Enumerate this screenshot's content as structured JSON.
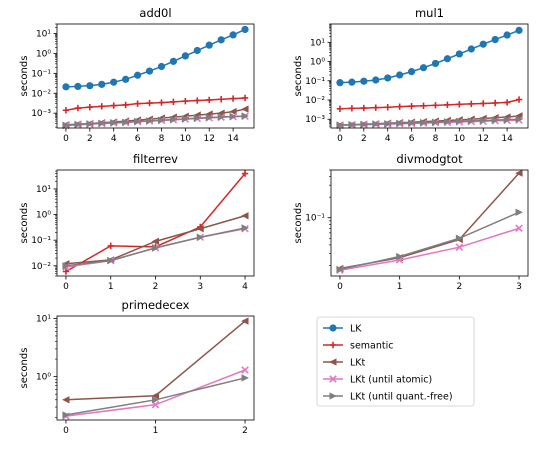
{
  "series_styles": [
    {
      "key": "LK",
      "color": "#1f77b4",
      "marker": "circle"
    },
    {
      "key": "semantic",
      "color": "#d62728",
      "marker": "plus"
    },
    {
      "key": "LKt",
      "color": "#8c564b",
      "marker": "triangle-left"
    },
    {
      "key": "LKt_atomic",
      "color": "#e377c2",
      "marker": "x"
    },
    {
      "key": "LKt_qf",
      "color": "#7f7f7f",
      "marker": "triangle-right"
    }
  ],
  "legend": {
    "placement": "lower-right empty cell",
    "entries": [
      "LK",
      "semantic",
      "LKt",
      "LKt (until atomic)",
      "LKt (until quant.-free)"
    ]
  },
  "chart_data": [
    {
      "type": "line",
      "title": "add0l",
      "ylabel": "seconds",
      "yscale": "log",
      "ylim": [
        0.00018,
        30
      ],
      "xlim": [
        -0.75,
        15.75
      ],
      "xticks": [
        0,
        2,
        4,
        6,
        8,
        10,
        12,
        14
      ],
      "yticks": [
        {
          "v": 0.001,
          "label": "10⁻³"
        },
        {
          "v": 0.01,
          "label": "10⁻²"
        },
        {
          "v": 0.1,
          "label": "10⁻¹"
        },
        {
          "v": 1,
          "label": "10⁰"
        },
        {
          "v": 10,
          "label": "10¹"
        }
      ],
      "x": [
        0,
        1,
        2,
        3,
        4,
        5,
        6,
        7,
        8,
        9,
        10,
        11,
        12,
        13,
        14,
        15
      ],
      "series": [
        {
          "name": "LK",
          "values": [
            0.021,
            0.022,
            0.024,
            0.028,
            0.036,
            0.05,
            0.08,
            0.13,
            0.22,
            0.4,
            0.75,
            1.4,
            2.6,
            4.8,
            8.5,
            16
          ]
        },
        {
          "name": "semantic",
          "values": [
            0.0014,
            0.0018,
            0.002,
            0.0022,
            0.0024,
            0.0026,
            0.003,
            0.0032,
            0.0034,
            0.0037,
            0.004,
            0.0043,
            0.0046,
            0.005,
            0.0054,
            0.0058
          ]
        },
        {
          "name": "LKt",
          "values": [
            0.00026,
            0.00028,
            0.0003,
            0.00033,
            0.00036,
            0.0004,
            0.00045,
            0.0005,
            0.00056,
            0.00063,
            0.0007,
            0.0008,
            0.0009,
            0.001,
            0.0012,
            0.0016
          ]
        },
        {
          "name": "LKt (until atomic)",
          "values": [
            0.00024,
            0.00026,
            0.00028,
            0.0003,
            0.00032,
            0.00034,
            0.00037,
            0.0004,
            0.00043,
            0.00046,
            0.0005,
            0.00054,
            0.00058,
            0.00062,
            0.00066,
            0.0007
          ]
        },
        {
          "name": "LKt (until quant.-free)",
          "values": [
            0.00025,
            0.00027,
            0.00029,
            0.00031,
            0.00033,
            0.00035,
            0.00038,
            0.00041,
            0.00044,
            0.00048,
            0.00052,
            0.00056,
            0.0006,
            0.00064,
            0.00068,
            0.00072
          ]
        }
      ]
    },
    {
      "type": "line",
      "title": "mul1",
      "ylabel": "seconds",
      "yscale": "log",
      "ylim": [
        0.00035,
        90
      ],
      "xlim": [
        -0.75,
        15.75
      ],
      "xticks": [
        0,
        2,
        4,
        6,
        8,
        10,
        12,
        14
      ],
      "yticks": [
        {
          "v": 0.001,
          "label": "10⁻³"
        },
        {
          "v": 0.01,
          "label": "10⁻²"
        },
        {
          "v": 0.1,
          "label": "10⁻¹"
        },
        {
          "v": 1,
          "label": "10⁰"
        },
        {
          "v": 10,
          "label": "10¹"
        }
      ],
      "x": [
        0,
        1,
        2,
        3,
        4,
        5,
        6,
        7,
        8,
        9,
        10,
        11,
        12,
        13,
        14,
        15
      ],
      "series": [
        {
          "name": "LK",
          "values": [
            0.08,
            0.085,
            0.095,
            0.11,
            0.14,
            0.2,
            0.3,
            0.48,
            0.8,
            1.4,
            2.5,
            4.5,
            8,
            14,
            24,
            42
          ]
        },
        {
          "name": "semantic",
          "values": [
            0.0035,
            0.0037,
            0.0038,
            0.004,
            0.0042,
            0.0045,
            0.0048,
            0.005,
            0.0053,
            0.0056,
            0.006,
            0.0063,
            0.0066,
            0.007,
            0.0075,
            0.0105
          ]
        },
        {
          "name": "LKt",
          "values": [
            0.0005,
            0.00052,
            0.00055,
            0.00058,
            0.00062,
            0.00066,
            0.0007,
            0.00075,
            0.0008,
            0.00086,
            0.00093,
            0.001,
            0.0011,
            0.0012,
            0.0013,
            0.0015
          ]
        },
        {
          "name": "LKt (until atomic)",
          "values": [
            0.00048,
            0.0005,
            0.00052,
            0.00054,
            0.00056,
            0.00058,
            0.0006,
            0.00063,
            0.00066,
            0.00069,
            0.00072,
            0.00075,
            0.00078,
            0.00082,
            0.00086,
            0.0009
          ]
        },
        {
          "name": "LKt (until quant.-free)",
          "values": [
            0.0005,
            0.00052,
            0.00054,
            0.00056,
            0.00058,
            0.00061,
            0.00064,
            0.00067,
            0.0007,
            0.00074,
            0.00078,
            0.00082,
            0.00086,
            0.0009,
            0.00095,
            0.001
          ]
        }
      ]
    },
    {
      "type": "line",
      "title": "filterrev",
      "ylabel": "seconds",
      "yscale": "log",
      "ylim": [
        0.004,
        55
      ],
      "xlim": [
        -0.2,
        4.2
      ],
      "xticks": [
        0,
        1,
        2,
        3,
        4
      ],
      "yticks": [
        {
          "v": 0.01,
          "label": "10⁻²"
        },
        {
          "v": 0.1,
          "label": "10⁻¹"
        },
        {
          "v": 1,
          "label": "10⁰"
        },
        {
          "v": 10,
          "label": "10¹"
        }
      ],
      "x": [
        0,
        1,
        2,
        3,
        4
      ],
      "series": [
        {
          "name": "semantic",
          "values": [
            0.006,
            0.06,
            0.055,
            0.33,
            40
          ]
        },
        {
          "name": "LKt",
          "values": [
            0.012,
            0.017,
            0.09,
            0.28,
            0.9
          ]
        },
        {
          "name": "LKt (until atomic)",
          "values": [
            0.009,
            0.016,
            0.05,
            0.13,
            0.28
          ]
        },
        {
          "name": "LKt (until quant.-free)",
          "values": [
            0.01,
            0.016,
            0.05,
            0.13,
            0.3
          ]
        }
      ]
    },
    {
      "type": "line",
      "title": "divmodgtot",
      "ylabel": "seconds",
      "yscale": "log",
      "ylim": [
        0.014,
        0.5
      ],
      "xlim": [
        -0.15,
        3.15
      ],
      "xticks": [
        0,
        1,
        2,
        3
      ],
      "yticks": [
        {
          "v": 0.1,
          "label": "10⁻¹"
        }
      ],
      "x": [
        0,
        1,
        2,
        3
      ],
      "series": [
        {
          "name": "LKt",
          "values": [
            0.018,
            0.026,
            0.048,
            0.45
          ]
        },
        {
          "name": "LKt (until atomic)",
          "values": [
            0.017,
            0.024,
            0.037,
            0.07
          ]
        },
        {
          "name": "LKt (until quant.-free)",
          "values": [
            0.0175,
            0.027,
            0.05,
            0.12
          ]
        }
      ]
    },
    {
      "type": "line",
      "title": "primedecex",
      "ylabel": "seconds",
      "yscale": "log",
      "ylim": [
        0.18,
        11
      ],
      "xlim": [
        -0.1,
        2.1
      ],
      "xticks": [
        0,
        1,
        2
      ],
      "yticks": [
        {
          "v": 1,
          "label": "10⁰"
        },
        {
          "v": 10,
          "label": "10¹"
        }
      ],
      "x": [
        0,
        1,
        2
      ],
      "series": [
        {
          "name": "LKt",
          "values": [
            0.4,
            0.47,
            9
          ]
        },
        {
          "name": "LKt (until atomic)",
          "values": [
            0.21,
            0.33,
            1.3
          ]
        },
        {
          "name": "LKt (until quant.-free)",
          "values": [
            0.22,
            0.4,
            0.95
          ]
        }
      ]
    }
  ]
}
